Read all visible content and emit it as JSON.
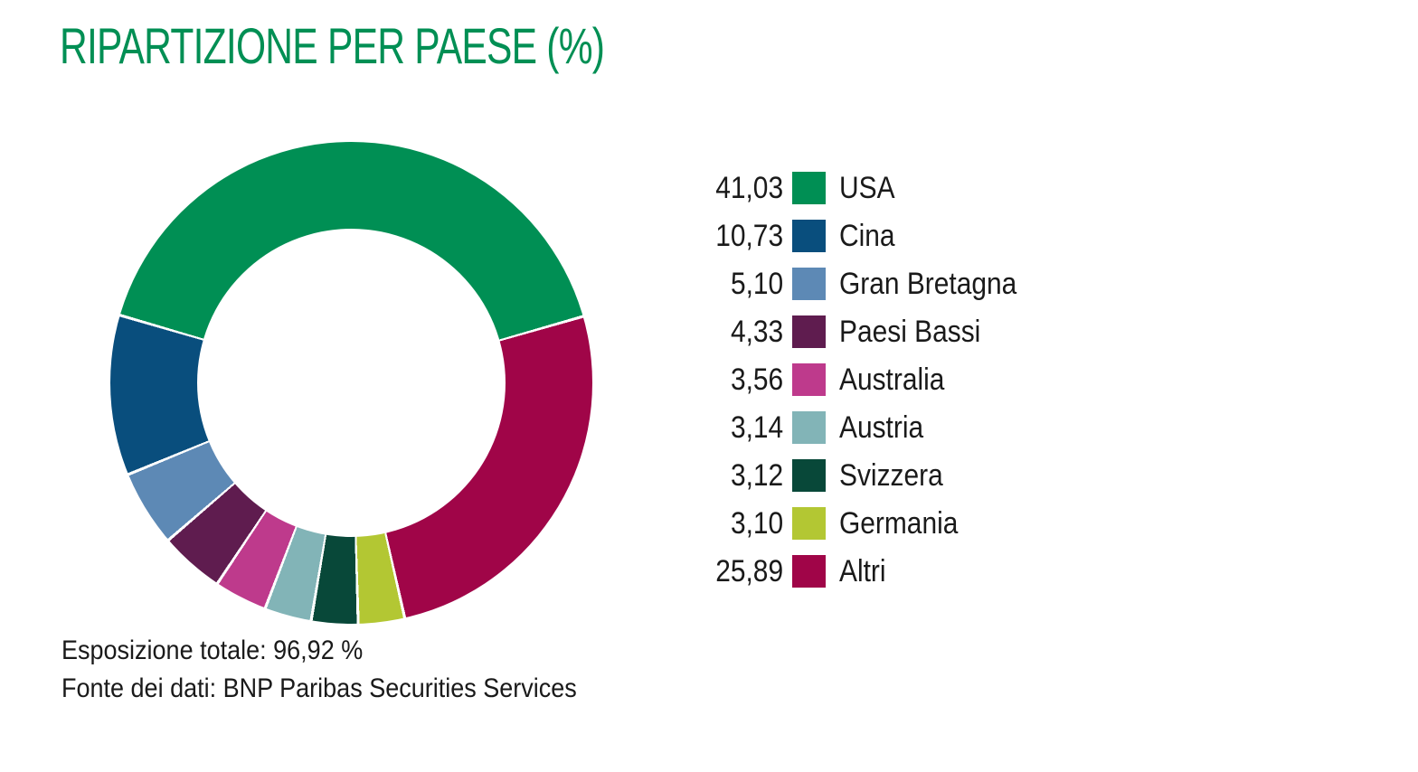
{
  "title": "RIPARTIZIONE PER PAESE (%)",
  "colors": {
    "title_green": "#008f54",
    "text": "#1a1a1a",
    "background": "#ffffff",
    "separator": "#ffffff"
  },
  "chart_data": {
    "type": "pie",
    "subtype": "donut",
    "title": "RIPARTIZIONE PER PAESE (%)",
    "series": [
      {
        "label": "USA",
        "value": 41.03,
        "value_label": "41,03",
        "color": "#008f54"
      },
      {
        "label": "Cina",
        "value": 10.73,
        "value_label": "10,73",
        "color": "#094e7d"
      },
      {
        "label": "Gran Bretagna",
        "value": 5.1,
        "value_label": "5,10",
        "color": "#5d89b5"
      },
      {
        "label": "Paesi Bassi",
        "value": 4.33,
        "value_label": "4,33",
        "color": "#5f1c4f"
      },
      {
        "label": "Australia",
        "value": 3.56,
        "value_label": "3,56",
        "color": "#be3a8c"
      },
      {
        "label": "Austria",
        "value": 3.14,
        "value_label": "3,14",
        "color": "#82b4b7"
      },
      {
        "label": "Svizzera",
        "value": 3.12,
        "value_label": "3,12",
        "color": "#084839"
      },
      {
        "label": "Germania",
        "value": 3.1,
        "value_label": "3,10",
        "color": "#b3c733"
      },
      {
        "label": "Altri",
        "value": 25.89,
        "value_label": "25,89",
        "color": "#a00548"
      }
    ],
    "layout": {
      "start_angle_deg": 74,
      "direction": "counterclockwise",
      "gap_deg": 0.7,
      "hole_ratio": 0.64,
      "legend_position": "right",
      "grid": false
    }
  },
  "footer": {
    "exposure_total": "Esposizione totale: 96,92 %",
    "data_source": "Fonte dei dati: BNP Paribas Securities Services"
  }
}
